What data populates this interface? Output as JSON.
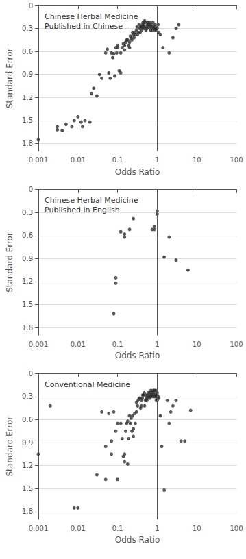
{
  "chart_data": [
    {
      "type": "scatter",
      "title": "Chinese Herbal Medicine\nPublished in Chinese",
      "xlabel": "Odds Ratio",
      "ylabel": "Standard Error",
      "log": "x",
      "grid": true,
      "color": "#2d2d2d",
      "marker": "circle",
      "xlim": [
        0.001,
        100
      ],
      "xticks": [
        0.001,
        0.01,
        0.1,
        1,
        10,
        100
      ],
      "ylim": [
        0,
        1.9
      ],
      "yticks": [
        0,
        0.3,
        0.6,
        0.9,
        1.2,
        1.5,
        1.8
      ],
      "vline_x": 1.0,
      "x": [
        0.001,
        0.003,
        0.003,
        0.004,
        0.005,
        0.007,
        0.008,
        0.01,
        0.012,
        0.013,
        0.015,
        0.02,
        0.022,
        0.025,
        0.03,
        0.035,
        0.04,
        0.05,
        0.055,
        0.06,
        0.065,
        0.07,
        0.075,
        0.08,
        0.085,
        0.09,
        0.095,
        0.1,
        0.1,
        0.11,
        0.12,
        0.12,
        0.13,
        0.14,
        0.15,
        0.15,
        0.16,
        0.17,
        0.18,
        0.19,
        0.2,
        0.2,
        0.21,
        0.22,
        0.23,
        0.24,
        0.25,
        0.26,
        0.27,
        0.28,
        0.3,
        0.31,
        0.32,
        0.33,
        0.35,
        0.36,
        0.37,
        0.38,
        0.4,
        0.41,
        0.42,
        0.43,
        0.44,
        0.45,
        0.46,
        0.47,
        0.48,
        0.5,
        0.52,
        0.53,
        0.55,
        0.57,
        0.58,
        0.6,
        0.62,
        0.65,
        0.67,
        0.68,
        0.7,
        0.72,
        0.75,
        0.78,
        0.8,
        0.82,
        0.85,
        0.88,
        0.9,
        0.93,
        0.95,
        1.0,
        1.05,
        1.1,
        1.2,
        1.4,
        2.0,
        2.5,
        3.0,
        3.5
      ],
      "values": [
        1.75,
        1.62,
        1.58,
        1.63,
        1.55,
        1.58,
        1.5,
        1.45,
        1.52,
        1.58,
        1.5,
        1.52,
        1.15,
        1.08,
        1.18,
        0.9,
        0.95,
        0.62,
        0.57,
        0.88,
        0.95,
        0.62,
        0.68,
        0.63,
        0.92,
        0.55,
        0.62,
        0.55,
        0.52,
        0.85,
        0.88,
        0.62,
        0.55,
        0.5,
        0.52,
        0.58,
        0.48,
        0.45,
        0.45,
        0.52,
        0.48,
        0.55,
        0.4,
        0.42,
        0.45,
        0.35,
        0.38,
        0.42,
        0.35,
        0.38,
        0.32,
        0.28,
        0.38,
        0.35,
        0.25,
        0.3,
        0.35,
        0.28,
        0.32,
        0.28,
        0.25,
        0.28,
        0.22,
        0.28,
        0.25,
        0.3,
        0.2,
        0.22,
        0.32,
        0.28,
        0.3,
        0.25,
        0.22,
        0.28,
        0.25,
        0.22,
        0.28,
        0.32,
        0.25,
        0.28,
        0.32,
        0.22,
        0.28,
        0.3,
        0.32,
        0.25,
        0.28,
        0.3,
        0.32,
        0.3,
        0.25,
        0.35,
        0.38,
        0.55,
        0.62,
        0.42,
        0.3,
        0.25
      ]
    },
    {
      "type": "scatter",
      "title": "Chinese Herbal Medicine\nPublished in English",
      "xlabel": "Odds Ratio",
      "ylabel": "Standard Error",
      "log": "x",
      "grid": true,
      "color": "#2d2d2d",
      "marker": "circle",
      "xlim": [
        0.001,
        100
      ],
      "xticks": [
        0.001,
        0.01,
        0.1,
        1,
        10,
        100
      ],
      "ylim": [
        0,
        1.9
      ],
      "yticks": [
        0,
        0.3,
        0.6,
        0.9,
        1.2,
        1.5,
        1.8
      ],
      "vline_x": 1.0,
      "x": [
        0.08,
        0.09,
        0.09,
        0.12,
        0.15,
        0.15,
        0.2,
        0.25,
        0.75,
        0.85,
        0.85,
        1.0,
        1.0,
        1.5,
        2.0,
        3.0,
        6.0
      ],
      "values": [
        1.62,
        1.15,
        1.22,
        0.55,
        0.58,
        0.62,
        0.52,
        0.38,
        0.52,
        0.48,
        0.52,
        0.32,
        0.28,
        0.88,
        0.62,
        0.92,
        1.05
      ]
    },
    {
      "type": "scatter",
      "title": "Conventional Medicine",
      "xlabel": "Odds Ratio",
      "ylabel": "Standard Error",
      "log": "x",
      "grid": true,
      "color": "#2d2d2d",
      "marker": "circle",
      "xlim": [
        0.001,
        100
      ],
      "xticks": [
        0.001,
        0.01,
        0.1,
        1,
        10,
        100
      ],
      "ylim": [
        0,
        1.9
      ],
      "yticks": [
        0,
        0.3,
        0.6,
        0.9,
        1.2,
        1.5,
        1.8
      ],
      "vline_x": 1.0,
      "x": [
        0.001,
        0.002,
        0.008,
        0.01,
        0.03,
        0.04,
        0.05,
        0.05,
        0.06,
        0.07,
        0.07,
        0.08,
        0.09,
        0.1,
        0.1,
        0.12,
        0.13,
        0.14,
        0.15,
        0.15,
        0.16,
        0.17,
        0.18,
        0.18,
        0.19,
        0.2,
        0.21,
        0.22,
        0.23,
        0.24,
        0.25,
        0.25,
        0.27,
        0.28,
        0.3,
        0.3,
        0.32,
        0.33,
        0.35,
        0.37,
        0.38,
        0.4,
        0.4,
        0.42,
        0.43,
        0.45,
        0.47,
        0.48,
        0.5,
        0.52,
        0.53,
        0.55,
        0.57,
        0.58,
        0.6,
        0.62,
        0.65,
        0.65,
        0.68,
        0.7,
        0.72,
        0.75,
        0.75,
        0.78,
        0.8,
        0.82,
        0.85,
        0.85,
        0.88,
        0.9,
        0.92,
        0.95,
        0.95,
        1.0,
        1.0,
        1.0,
        1.0,
        1.05,
        1.1,
        1.2,
        1.3,
        1.5,
        1.8,
        2.0,
        2.2,
        2.5,
        3.0,
        4.0,
        5.0,
        7.0
      ],
      "values": [
        1.05,
        0.42,
        1.75,
        1.75,
        1.32,
        0.5,
        0.95,
        1.38,
        0.52,
        1.05,
        0.88,
        0.5,
        0.75,
        0.65,
        1.38,
        0.65,
        0.85,
        1.08,
        1.15,
        1.05,
        0.75,
        0.65,
        0.62,
        1.18,
        0.85,
        0.55,
        0.65,
        0.58,
        0.75,
        0.55,
        0.72,
        0.82,
        0.52,
        0.65,
        0.5,
        0.38,
        0.42,
        0.35,
        0.32,
        0.32,
        0.45,
        0.35,
        0.42,
        0.32,
        0.28,
        0.28,
        0.25,
        0.42,
        0.35,
        0.28,
        0.32,
        0.35,
        0.28,
        0.32,
        0.25,
        0.3,
        0.32,
        0.25,
        0.28,
        0.22,
        0.28,
        0.25,
        0.3,
        0.28,
        0.22,
        0.25,
        0.3,
        0.22,
        0.3,
        0.28,
        0.22,
        0.28,
        0.35,
        0.32,
        0.25,
        0.28,
        0.35,
        0.3,
        0.32,
        0.55,
        0.95,
        1.52,
        0.35,
        0.65,
        0.5,
        0.42,
        0.35,
        0.88,
        0.88,
        0.48
      ]
    }
  ]
}
